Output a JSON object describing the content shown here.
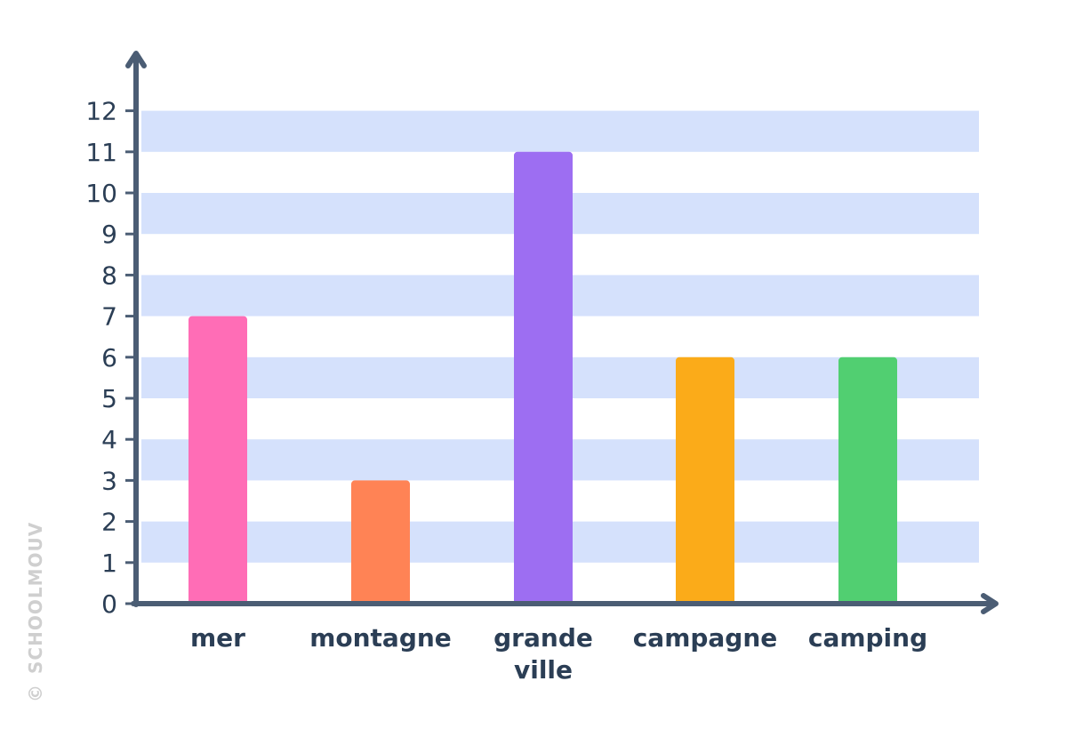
{
  "chart_data": {
    "type": "bar",
    "categories": [
      [
        "mer"
      ],
      [
        "montagne"
      ],
      [
        "grande",
        "ville"
      ],
      [
        "campagne"
      ],
      [
        "camping"
      ]
    ],
    "values": [
      7,
      3,
      11,
      6,
      6
    ],
    "bar_colors": [
      "#ff6db6",
      "#ff8355",
      "#9d6ef2",
      "#fbab19",
      "#51cf71"
    ],
    "yticks": [
      "0",
      "1",
      "2",
      "3",
      "4",
      "5",
      "6",
      "7",
      "8",
      "9",
      "10",
      "11",
      "12"
    ],
    "ylim": [
      0,
      12
    ],
    "band_color": "#d5e1fc",
    "axis_color": "#4b5d74",
    "text_color": "#2b3e55",
    "title": "",
    "xlabel": "",
    "ylabel": ""
  },
  "watermark": {
    "copyright_symbol": "©",
    "text": "SCHOOLMOUV"
  }
}
